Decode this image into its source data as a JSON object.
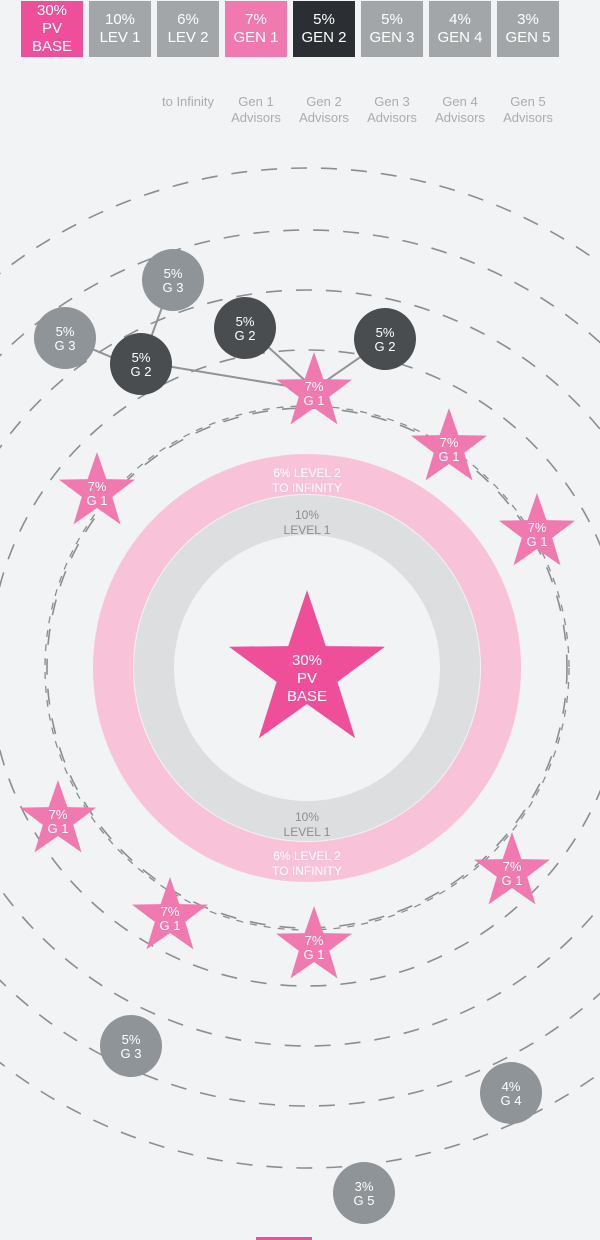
{
  "colors": {
    "pink": "#ef4f98",
    "pink_light": "#f8c3d9",
    "pink_star": "#f07ab0",
    "gray": "#a3a6a9",
    "gray_node": "#8f9498",
    "dark": "#2b2f33",
    "dark_node": "#4a4d50",
    "ring_gray": "#dcdee0",
    "dash": "#8a8e92",
    "bg": "#f2f3f4"
  },
  "header": {
    "boxes": [
      {
        "lines": [
          "30%",
          "PV",
          "BASE"
        ],
        "color": "pink"
      },
      {
        "lines": [
          "10%",
          "LEV 1"
        ],
        "color": "gray"
      },
      {
        "lines": [
          "6%",
          "LEV 2"
        ],
        "color": "gray"
      },
      {
        "lines": [
          "7%",
          "GEN 1"
        ],
        "color": "pink_star"
      },
      {
        "lines": [
          "5%",
          "GEN 2"
        ],
        "color": "dark"
      },
      {
        "lines": [
          "5%",
          "GEN 3"
        ],
        "color": "gray"
      },
      {
        "lines": [
          "4%",
          "GEN 4"
        ],
        "color": "gray"
      },
      {
        "lines": [
          "3%",
          "GEN 5"
        ],
        "color": "gray"
      }
    ],
    "sublabels": [
      {
        "index": 2,
        "lines": [
          "to Infinity"
        ]
      },
      {
        "index": 3,
        "lines": [
          "Gen 1",
          "Advisors"
        ]
      },
      {
        "index": 4,
        "lines": [
          "Gen 2",
          "Advisors"
        ]
      },
      {
        "index": 5,
        "lines": [
          "Gen 3",
          "Advisors"
        ]
      },
      {
        "index": 6,
        "lines": [
          "Gen 4",
          "Advisors"
        ]
      },
      {
        "index": 7,
        "lines": [
          "Gen 5",
          "Advisors"
        ]
      }
    ]
  },
  "center": {
    "lines": [
      "30%",
      "PV",
      "BASE"
    ]
  },
  "rings": {
    "outer_top": [
      "6% LEVEL 2",
      "TO INFINITY"
    ],
    "inner_top": [
      "10%",
      "LEVEL 1"
    ],
    "inner_bottom": [
      "10%",
      "LEVEL 1"
    ],
    "outer_bottom": [
      "6% LEVEL 2",
      "TO INFINITY"
    ]
  },
  "gen1_label": [
    "7%",
    "G 1"
  ],
  "nodes": {
    "gen2": [
      "5%",
      "G 2"
    ],
    "gen3": [
      "5%",
      "G 3"
    ],
    "gen4": [
      "4%",
      "G 4"
    ],
    "gen5": [
      "3%",
      "G 5"
    ]
  }
}
